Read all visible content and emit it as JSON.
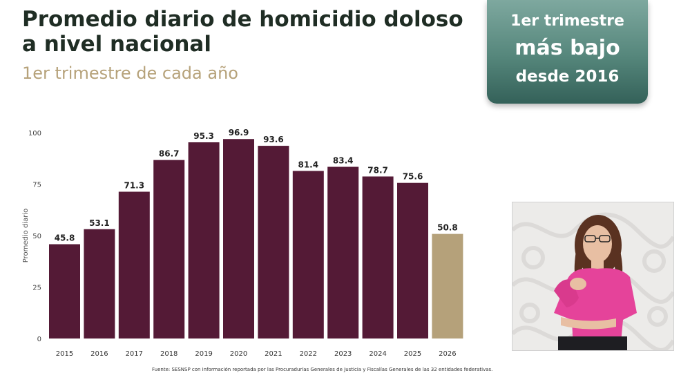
{
  "title": "Promedio diario de homicidio doloso a nivel nacional",
  "subtitle": "1er trimestre de cada año",
  "badge": {
    "line1": "1er trimestre",
    "line2": "más bajo",
    "line3": "desde 2016"
  },
  "source": "Fuente: SESNSP con información reportada por las Procuradurías Generales de Justicia y Fiscalías Generales de las 32 entidades federativas.",
  "colors": {
    "bar": "#541a36",
    "highlight": "#b5a17a",
    "badge": "#55867b"
  },
  "chart_data": {
    "type": "bar",
    "categories": [
      "2015",
      "2016",
      "2017",
      "2018",
      "2019",
      "2020",
      "2021",
      "2022",
      "2023",
      "2024",
      "2025",
      "2026"
    ],
    "values": [
      45.8,
      53.1,
      71.3,
      86.7,
      95.3,
      96.9,
      93.6,
      81.4,
      83.4,
      78.7,
      75.6,
      50.8
    ],
    "value_labels": [
      "45.8",
      "53.1",
      "71.3",
      "86.7",
      "95.3",
      "96.9",
      "93.6",
      "81.4",
      "83.4",
      "78.7",
      "75.6",
      "50.8"
    ],
    "highlight_category": "2026",
    "ylabel": "Promedio diario",
    "ylim": [
      0,
      100
    ],
    "yticks": [
      0,
      25,
      50,
      75,
      100
    ],
    "legend": "none",
    "grid": false
  }
}
